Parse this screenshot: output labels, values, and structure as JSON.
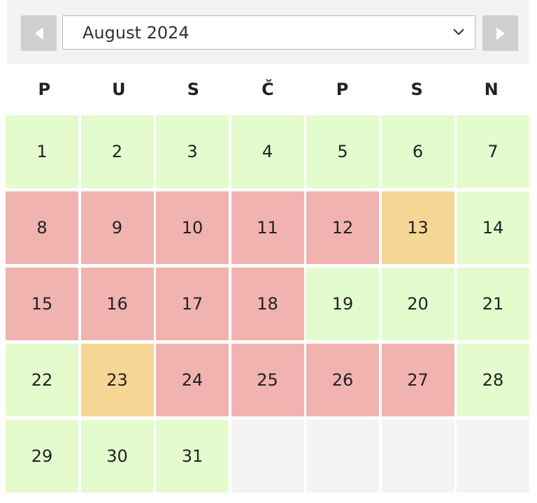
{
  "header": {
    "month_label": "August 2024",
    "prev_icon": "triangle-left-icon",
    "next_icon": "triangle-right-icon",
    "dropdown_icon": "chevron-down-icon"
  },
  "weekdays": [
    "P",
    "U",
    "S",
    "Č",
    "P",
    "S",
    "N"
  ],
  "colors": {
    "free": "#e3fbcd",
    "booked": "#f0b3b0",
    "partial": "#f6d694",
    "empty": "#f4f4f4"
  },
  "days": [
    {
      "label": "1",
      "status": "free"
    },
    {
      "label": "2",
      "status": "free"
    },
    {
      "label": "3",
      "status": "free"
    },
    {
      "label": "4",
      "status": "free"
    },
    {
      "label": "5",
      "status": "free"
    },
    {
      "label": "6",
      "status": "free"
    },
    {
      "label": "7",
      "status": "free"
    },
    {
      "label": "8",
      "status": "booked"
    },
    {
      "label": "9",
      "status": "booked"
    },
    {
      "label": "10",
      "status": "booked"
    },
    {
      "label": "11",
      "status": "booked"
    },
    {
      "label": "12",
      "status": "booked"
    },
    {
      "label": "13",
      "status": "partial"
    },
    {
      "label": "14",
      "status": "free"
    },
    {
      "label": "15",
      "status": "booked"
    },
    {
      "label": "16",
      "status": "booked"
    },
    {
      "label": "17",
      "status": "booked"
    },
    {
      "label": "18",
      "status": "booked"
    },
    {
      "label": "19",
      "status": "free"
    },
    {
      "label": "20",
      "status": "free"
    },
    {
      "label": "21",
      "status": "free"
    },
    {
      "label": "22",
      "status": "free"
    },
    {
      "label": "23",
      "status": "partial"
    },
    {
      "label": "24",
      "status": "booked"
    },
    {
      "label": "25",
      "status": "booked"
    },
    {
      "label": "26",
      "status": "booked"
    },
    {
      "label": "27",
      "status": "booked"
    },
    {
      "label": "28",
      "status": "free"
    },
    {
      "label": "29",
      "status": "free"
    },
    {
      "label": "30",
      "status": "free"
    },
    {
      "label": "31",
      "status": "free"
    },
    {
      "label": "",
      "status": "empty"
    },
    {
      "label": "",
      "status": "empty"
    },
    {
      "label": "",
      "status": "empty"
    },
    {
      "label": "",
      "status": "empty"
    }
  ]
}
